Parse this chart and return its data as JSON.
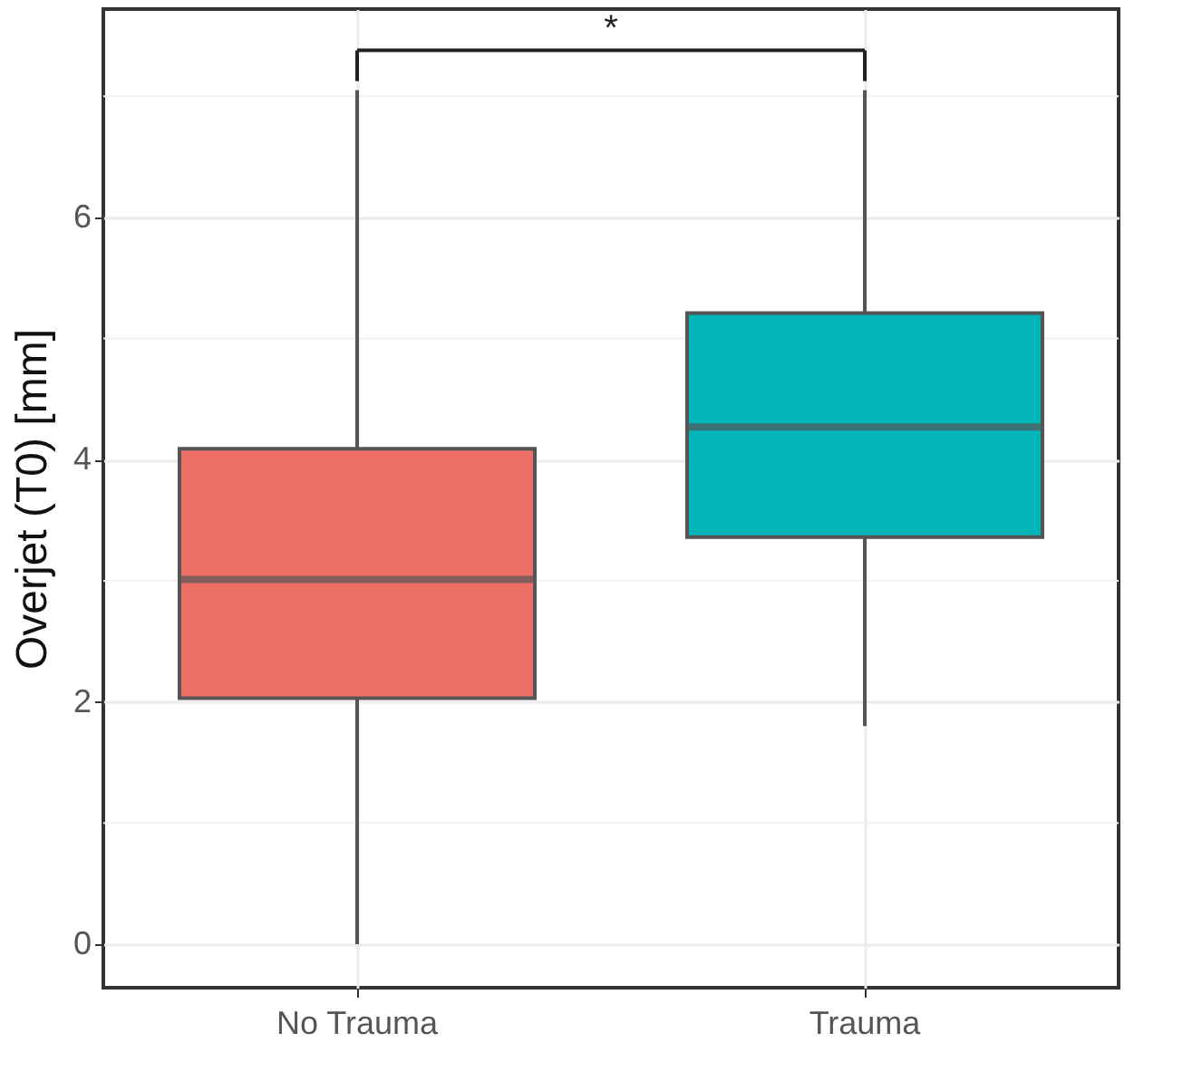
{
  "chart_data": {
    "type": "box",
    "ylabel": "Overjet (T0) [mm]",
    "categories": [
      "No Trauma",
      "Trauma"
    ],
    "colors": [
      "#ed6f67",
      "#00b4b7"
    ],
    "boxes": [
      {
        "low": 0,
        "q1": 2.03,
        "median": 3.01,
        "q3": 4.09,
        "high": 7.05
      },
      {
        "low": 1.8,
        "q1": 3.36,
        "median": 4.27,
        "q3": 5.21,
        "high": 7.05
      }
    ],
    "ylim": [
      -0.36,
      7.72
    ],
    "yticks": [
      0,
      {
        "value": 1,
        "label": null
      },
      2,
      {
        "value": 3,
        "label": null
      },
      4,
      {
        "value": 5,
        "label": null
      },
      6,
      {
        "value": 7,
        "label": null
      }
    ],
    "grid": true,
    "annotations": [
      "*"
    ]
  }
}
